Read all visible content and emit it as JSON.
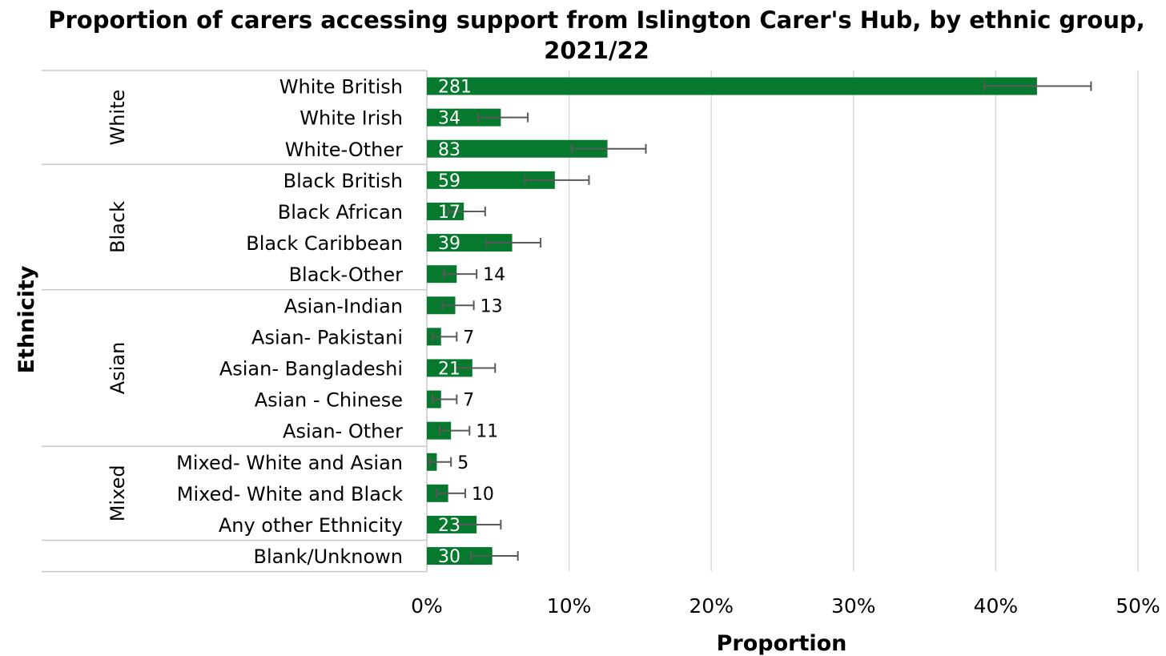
{
  "chart_data": {
    "type": "bar",
    "orientation": "horizontal",
    "title": "Proportion of carers accessing support from Islington Carer's Hub, by ethnic group, 2021/22",
    "xlabel": "Proportion",
    "ylabel": "Ethnicity",
    "xlim": [
      0,
      0.5
    ],
    "x_ticks": [
      "0%",
      "10%",
      "20%",
      "30%",
      "40%",
      "50%"
    ],
    "grid": true,
    "bar_color": "#06792F",
    "error_bar_color": "#595959",
    "groups": [
      {
        "name": "White",
        "categories": [
          "White British",
          "White Irish",
          "White-Other"
        ]
      },
      {
        "name": "Black",
        "categories": [
          "Black British",
          "Black African",
          "Black Caribbean",
          "Black-Other"
        ]
      },
      {
        "name": "Asian",
        "categories": [
          "Asian-Indian",
          "Asian- Pakistani",
          "Asian- Bangladeshi",
          "Asian - Chinese",
          "Asian- Other"
        ]
      },
      {
        "name": "Mixed",
        "categories": [
          "Mixed- White and Asian",
          "Mixed- White and Black",
          "Any other Ethnicity"
        ]
      },
      {
        "name": "",
        "categories": [
          "Blank/Unknown"
        ]
      }
    ],
    "categories": [
      "White British",
      "White Irish",
      "White-Other",
      "Black British",
      "Black African",
      "Black Caribbean",
      "Black-Other",
      "Asian-Indian",
      "Asian- Pakistani",
      "Asian- Bangladeshi",
      "Asian - Chinese",
      "Asian- Other",
      "Mixed- White and Asian",
      "Mixed- White and Black",
      "Any other Ethnicity",
      "Blank/Unknown"
    ],
    "values": [
      0.429,
      0.052,
      0.127,
      0.09,
      0.026,
      0.06,
      0.021,
      0.02,
      0.01,
      0.032,
      0.01,
      0.017,
      0.007,
      0.015,
      0.035,
      0.046
    ],
    "error_low": [
      0.392,
      0.036,
      0.102,
      0.069,
      0.015,
      0.042,
      0.012,
      0.011,
      0.004,
      0.02,
      0.004,
      0.009,
      0.002,
      0.007,
      0.022,
      0.031
    ],
    "error_high": [
      0.467,
      0.071,
      0.154,
      0.114,
      0.041,
      0.08,
      0.035,
      0.033,
      0.021,
      0.048,
      0.021,
      0.03,
      0.017,
      0.027,
      0.052,
      0.064
    ],
    "data_labels": [
      "281",
      "34",
      "83",
      "59",
      "17",
      "39",
      "14",
      "13",
      "7",
      "21",
      "7",
      "11",
      "5",
      "10",
      "23",
      "30"
    ],
    "label_inside": [
      true,
      true,
      true,
      true,
      true,
      true,
      false,
      false,
      false,
      true,
      false,
      false,
      false,
      false,
      true,
      true
    ]
  }
}
